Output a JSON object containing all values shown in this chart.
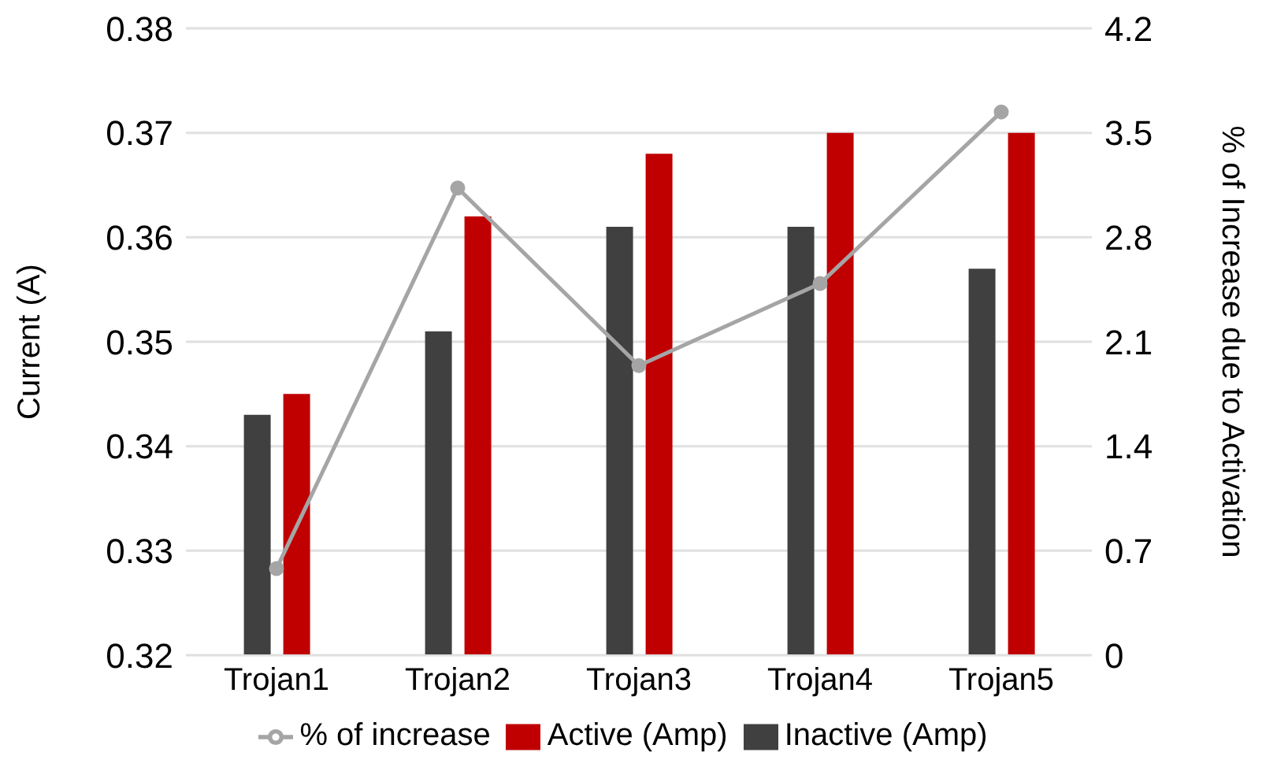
{
  "chart_data": {
    "type": "bar",
    "categories": [
      "Trojan1",
      "Trojan2",
      "Trojan3",
      "Trojan4",
      "Trojan5"
    ],
    "ylabel": "Current (A)",
    "y2label": "% of Increase due to Activation",
    "series": [
      {
        "name": "Inactive (Amp)",
        "color": "#404040",
        "values": [
          0.343,
          0.351,
          0.361,
          0.361,
          0.357
        ]
      },
      {
        "name": "Active (Amp)",
        "color": "#c00000",
        "values": [
          0.345,
          0.362,
          0.368,
          0.37,
          0.37
        ]
      },
      {
        "name": "% of increase",
        "type": "line",
        "axis": "y2",
        "color": "#a5a5a5",
        "marker": "circle",
        "values": [
          0.58,
          3.13,
          1.94,
          2.49,
          3.64
        ]
      }
    ],
    "ylim": [
      0.32,
      0.38
    ],
    "yticks": [
      0.32,
      0.33,
      0.34,
      0.35,
      0.36,
      0.37,
      0.38
    ],
    "y2lim": [
      0,
      4.2
    ],
    "y2ticks": [
      0,
      0.7,
      1.4,
      2.1,
      2.8,
      3.5,
      4.2
    ],
    "grid": "y",
    "legend": "bottom"
  }
}
